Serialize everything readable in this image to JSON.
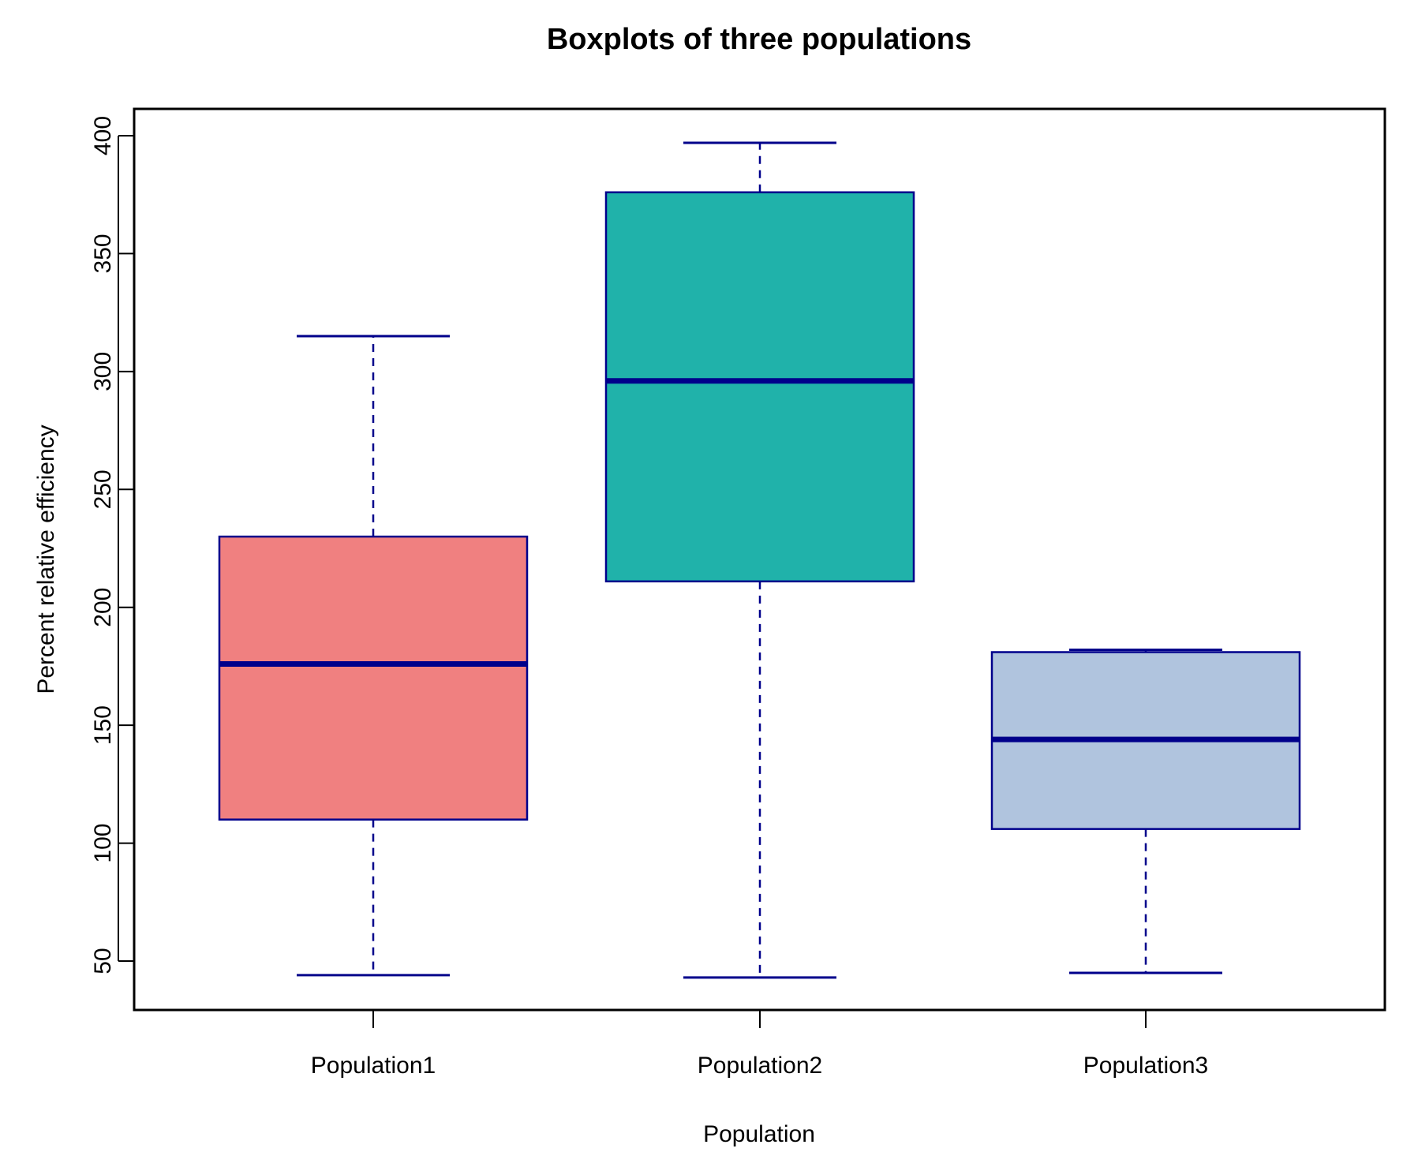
{
  "chart_data": {
    "type": "boxplot",
    "title": "Boxplots of three populations",
    "xlabel": "Population",
    "ylabel": "Percent relative efficiency",
    "ylim": [
      30,
      410
    ],
    "yticks": [
      50,
      100,
      150,
      200,
      250,
      300,
      350,
      400
    ],
    "categories": [
      "Population1",
      "Population2",
      "Population3"
    ],
    "boxes": [
      {
        "name": "Population1",
        "whisker_low": 44,
        "q1": 110,
        "median": 176,
        "q3": 230,
        "whisker_high": 315,
        "fill": "#F08080"
      },
      {
        "name": "Population2",
        "whisker_low": 43,
        "q1": 211,
        "median": 296,
        "q3": 376,
        "whisker_high": 397,
        "fill": "#20B2AA"
      },
      {
        "name": "Population3",
        "whisker_low": 45,
        "q1": 106,
        "median": 144,
        "q3": 181,
        "whisker_high": 182,
        "fill": "#B0C4DE"
      }
    ],
    "line_color": "#00008B",
    "grid": false
  }
}
